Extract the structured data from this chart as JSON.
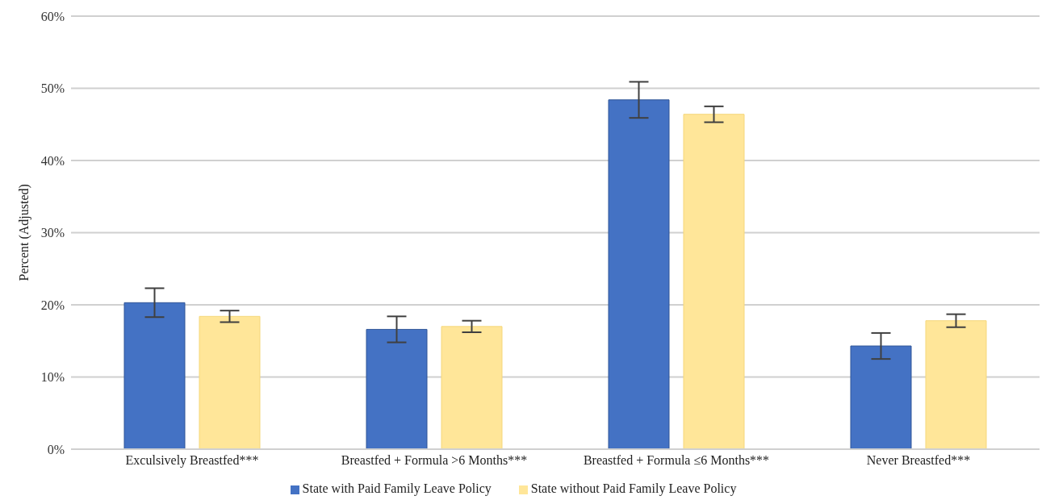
{
  "chart_data": {
    "type": "bar",
    "ylabel": "Percent (Adjusted)",
    "categories": [
      "Exculsively Breastfed***",
      "Breastfed + Formula >6 Months***",
      "Breastfed + Formula ≤6 Months***",
      "Never Breastfed***"
    ],
    "series": [
      {
        "name": "State with Paid Family Leave Policy",
        "color": "#4472c4",
        "values": [
          20.3,
          16.6,
          48.4,
          14.3
        ],
        "errors": [
          2.0,
          1.8,
          2.5,
          1.8
        ]
      },
      {
        "name": "State without Paid Family Leave Policy",
        "color": "#ffe699",
        "values": [
          18.4,
          17.0,
          46.4,
          17.8
        ],
        "errors": [
          0.8,
          0.8,
          1.1,
          0.9
        ]
      }
    ],
    "ylim": [
      0,
      60
    ],
    "yticks": [
      {
        "value": 0,
        "label": "0%"
      },
      {
        "value": 10,
        "label": "10%"
      },
      {
        "value": 20,
        "label": "20%"
      },
      {
        "value": 30,
        "label": "30%"
      },
      {
        "value": 40,
        "label": "40%"
      },
      {
        "value": 50,
        "label": "50%"
      },
      {
        "value": 60,
        "label": "60%"
      }
    ],
    "grid": "y",
    "legend": "bottom"
  }
}
